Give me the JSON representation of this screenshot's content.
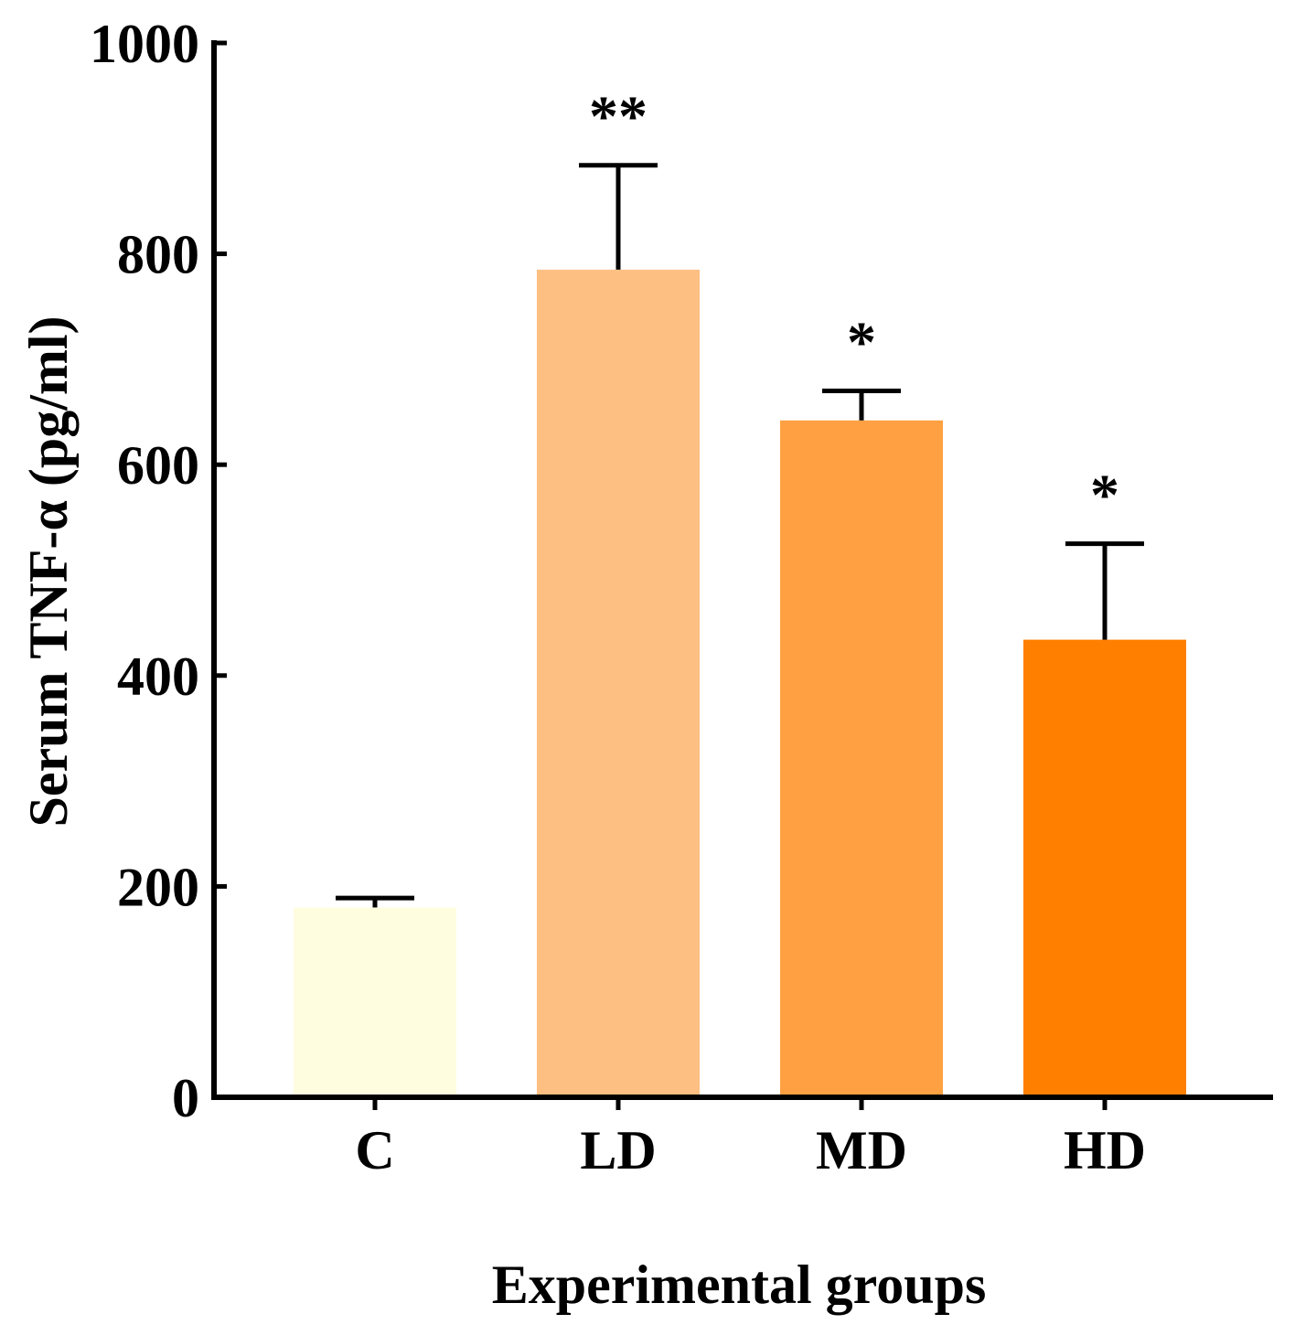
{
  "chart_data": {
    "type": "bar",
    "title": "",
    "xlabel": "Experimental groups",
    "ylabel": "Serum TNF-α (pg/ml)",
    "ylim": [
      0,
      1000
    ],
    "yticks": [
      0,
      200,
      400,
      600,
      800,
      1000
    ],
    "categories": [
      "C",
      "LD",
      "MD",
      "HD"
    ],
    "values": [
      180,
      785,
      642,
      434
    ],
    "errors": [
      9,
      99,
      28,
      91
    ],
    "significance": [
      "",
      "**",
      "*",
      "*"
    ],
    "colors": [
      "#FFFDE0",
      "#FDBF82",
      "#FFA142",
      "#FF7F00"
    ],
    "grid": false,
    "legend": "none"
  }
}
